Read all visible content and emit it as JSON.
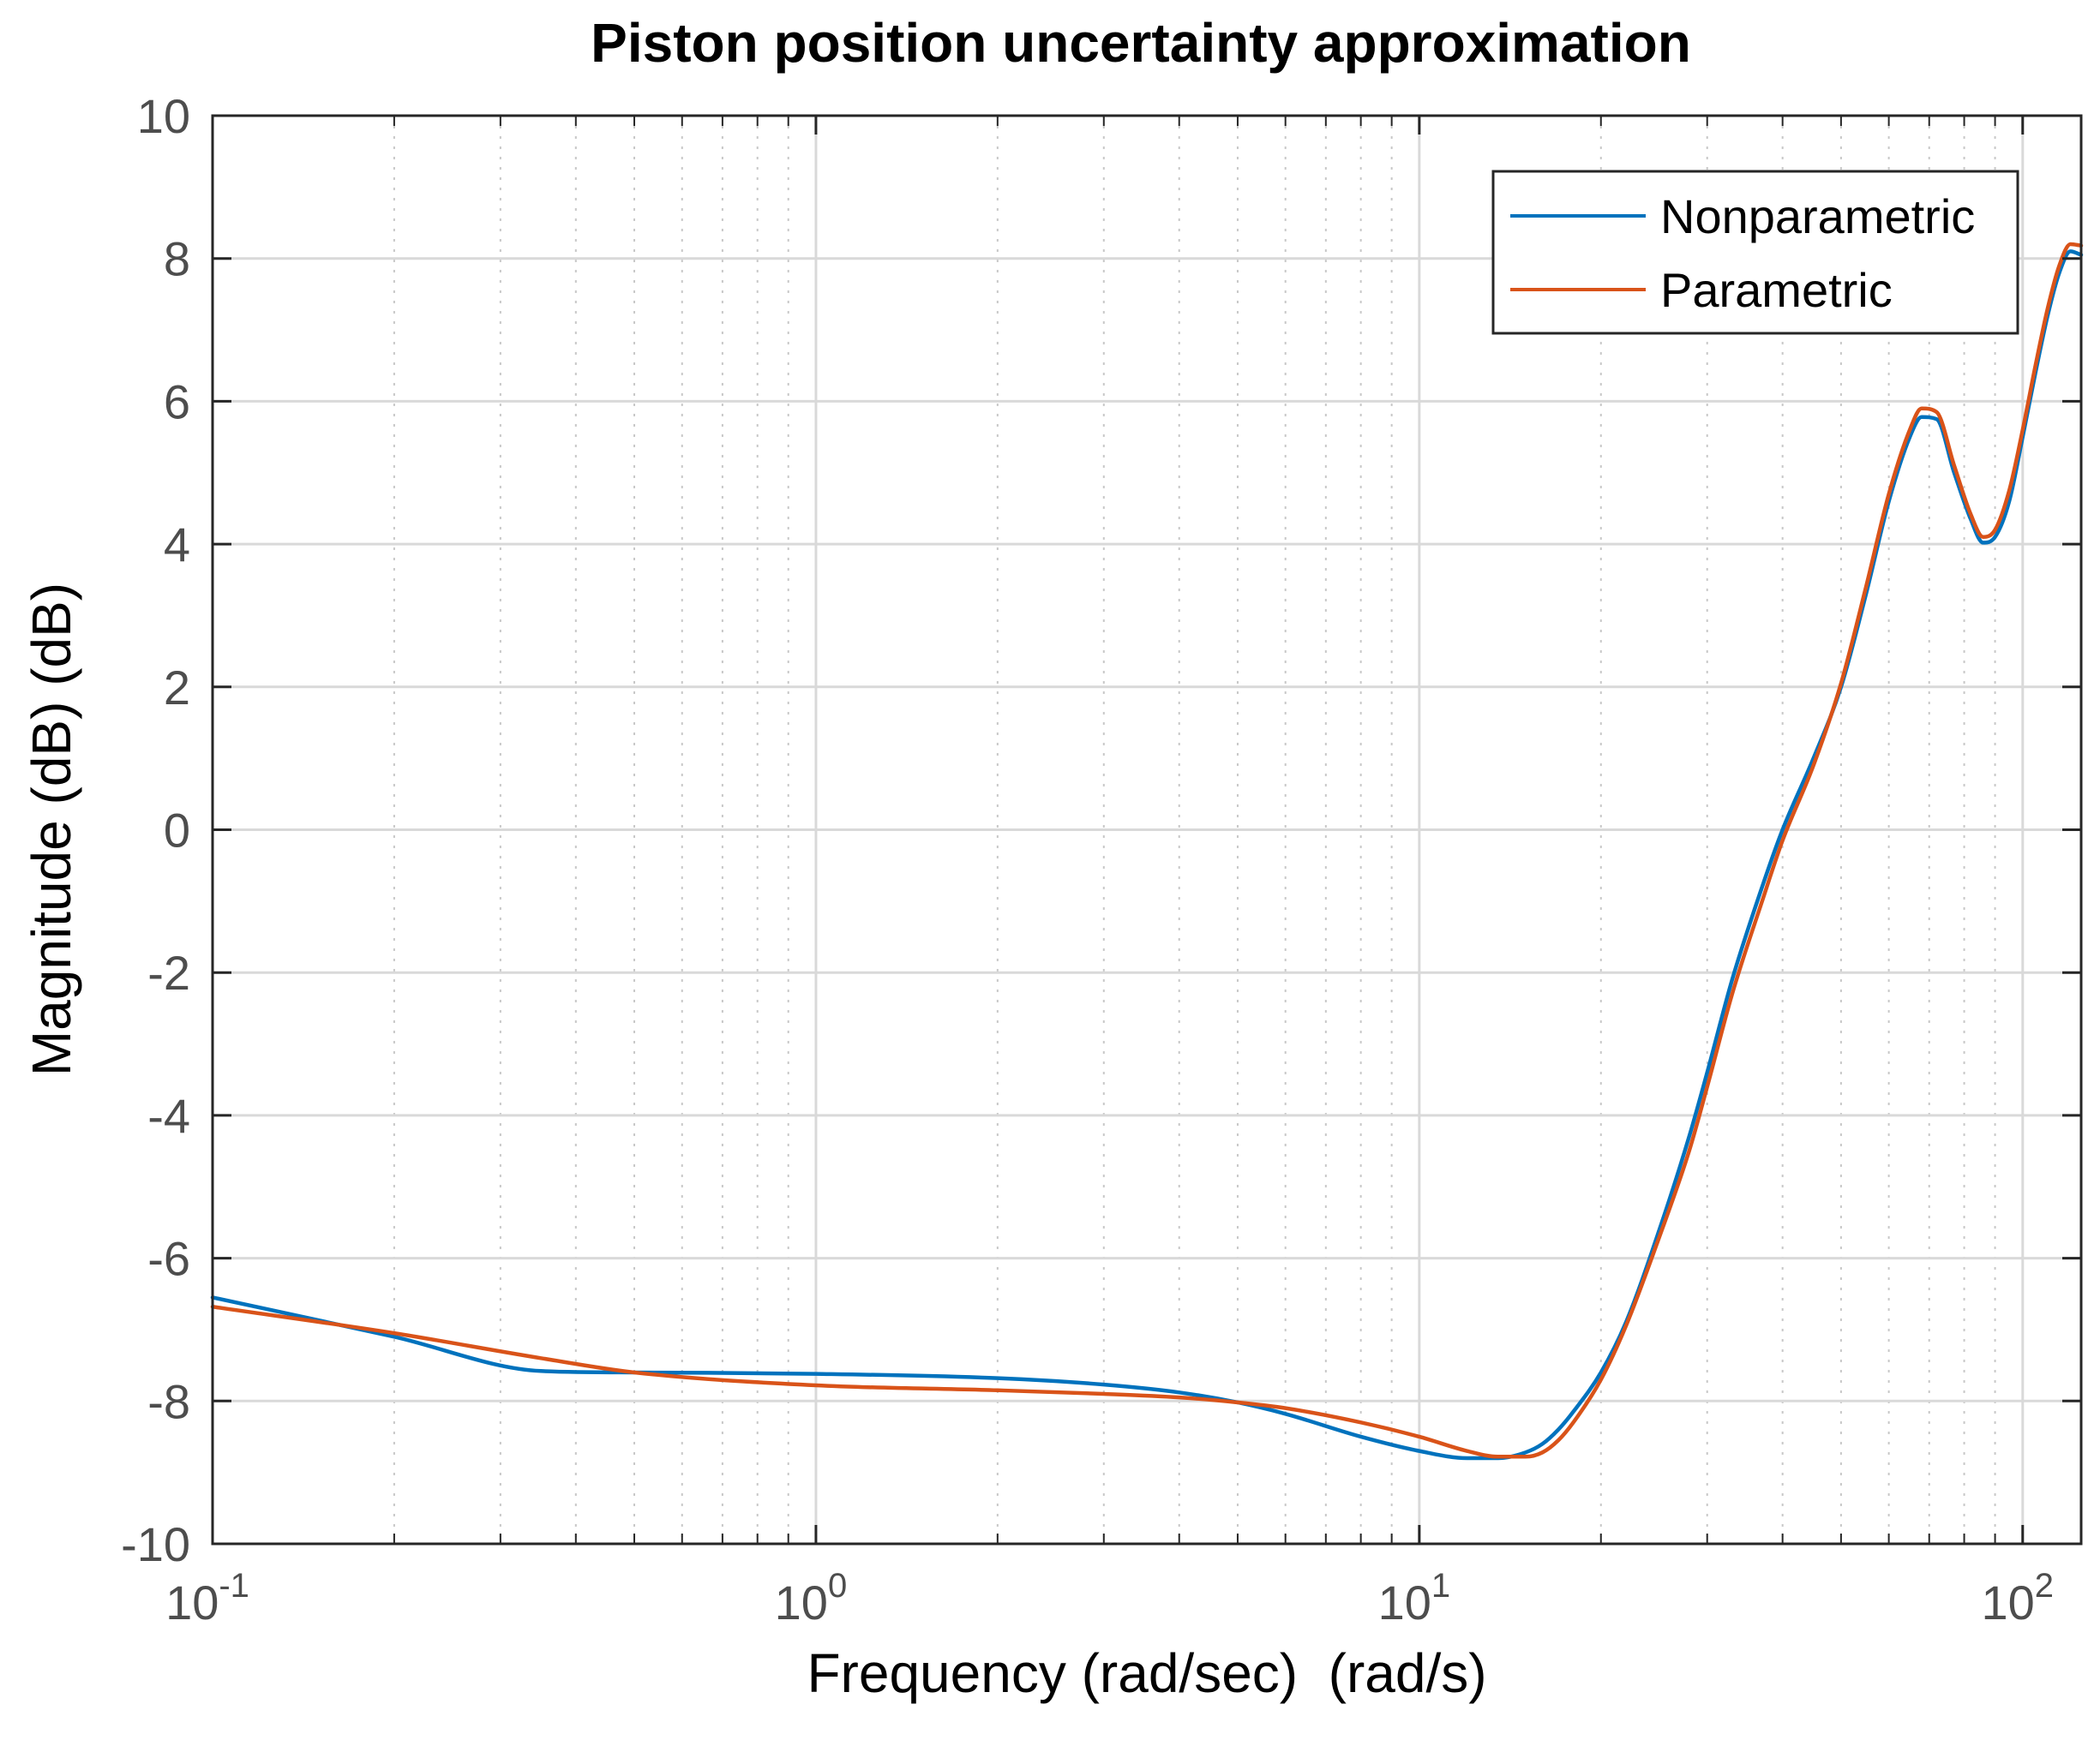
{
  "chart_data": {
    "type": "line",
    "title": "Piston position uncertainty approximation",
    "xlabel": "Frequency (rad/sec)  (rad/s)",
    "ylabel": "Magnitude (dB) (dB)",
    "xscale": "log",
    "xlim": [
      0.1,
      125
    ],
    "ylim": [
      -10,
      10
    ],
    "grid": true,
    "minor_grid": true,
    "legend_position": "top-right",
    "x_ticks": [
      {
        "value": 0.1,
        "base": "10",
        "exp": "-1"
      },
      {
        "value": 1,
        "base": "10",
        "exp": "0"
      },
      {
        "value": 10,
        "base": "10",
        "exp": "1"
      },
      {
        "value": 100,
        "base": "10",
        "exp": "2"
      }
    ],
    "y_ticks": [
      {
        "value": 10,
        "label": "10"
      },
      {
        "value": 8,
        "label": "8"
      },
      {
        "value": 6,
        "label": "6"
      },
      {
        "value": 4,
        "label": "4"
      },
      {
        "value": 2,
        "label": "2"
      },
      {
        "value": 0,
        "label": "0"
      },
      {
        "value": -2,
        "label": "-2"
      },
      {
        "value": -4,
        "label": "-4"
      },
      {
        "value": -6,
        "label": "-6"
      },
      {
        "value": -8,
        "label": "-8"
      },
      {
        "value": -10,
        "label": "-10"
      }
    ],
    "series": [
      {
        "name": "Nonparametric",
        "color": "#0072BD",
        "x": [
          0.1,
          0.2,
          0.35,
          0.5,
          1.0,
          2.0,
          3.0,
          4.0,
          5.0,
          6.0,
          8.0,
          10.0,
          12.0,
          13.5,
          15.0,
          16.0,
          17.0,
          18.0,
          20.0,
          22.0,
          25.0,
          28.0,
          30.0,
          33.0,
          37.0,
          40.0,
          45.0,
          50.0,
          55.0,
          60.0,
          65.0,
          68.0,
          72.0,
          77.0,
          82.0,
          86.0,
          90.0,
          95.0,
          100.0,
          105.0,
          110.0,
          115.0,
          120.0,
          125.0
        ],
        "values": [
          -6.55,
          -7.1,
          -7.58,
          -7.6,
          -7.62,
          -7.68,
          -7.77,
          -7.88,
          -8.02,
          -8.18,
          -8.5,
          -8.7,
          -8.8,
          -8.8,
          -8.72,
          -8.6,
          -8.4,
          -8.15,
          -7.6,
          -6.9,
          -5.6,
          -4.3,
          -3.4,
          -2.1,
          -0.8,
          0.0,
          1.0,
          2.0,
          3.3,
          4.6,
          5.5,
          5.78,
          5.75,
          5.0,
          4.35,
          4.02,
          4.1,
          4.6,
          5.5,
          6.4,
          7.2,
          7.8,
          8.1,
          8.05
        ]
      },
      {
        "name": "Parametric",
        "color": "#D95319",
        "x": [
          0.1,
          0.2,
          0.35,
          0.5,
          1.0,
          2.0,
          3.0,
          4.0,
          5.0,
          6.0,
          8.0,
          10.0,
          12.0,
          13.5,
          15.0,
          16.0,
          17.0,
          18.0,
          20.0,
          22.0,
          25.0,
          28.0,
          30.0,
          33.0,
          37.0,
          40.0,
          45.0,
          50.0,
          55.0,
          60.0,
          65.0,
          68.0,
          72.0,
          77.0,
          82.0,
          86.0,
          90.0,
          95.0,
          100.0,
          105.0,
          110.0,
          115.0,
          120.0,
          125.0
        ],
        "values": [
          -6.68,
          -7.05,
          -7.4,
          -7.6,
          -7.78,
          -7.85,
          -7.9,
          -7.95,
          -8.02,
          -8.1,
          -8.3,
          -8.5,
          -8.7,
          -8.78,
          -8.78,
          -8.72,
          -8.55,
          -8.3,
          -7.7,
          -6.95,
          -5.7,
          -4.5,
          -3.6,
          -2.3,
          -1.0,
          -0.15,
          0.9,
          2.05,
          3.4,
          4.7,
          5.6,
          5.9,
          5.85,
          5.1,
          4.42,
          4.1,
          4.2,
          4.75,
          5.6,
          6.5,
          7.3,
          7.9,
          8.2,
          8.18
        ]
      }
    ]
  }
}
